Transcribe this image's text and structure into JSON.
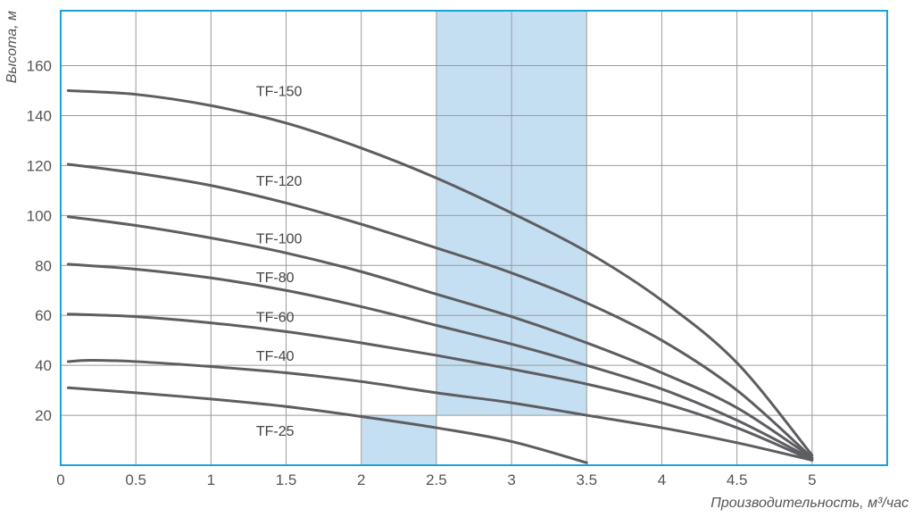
{
  "chart_data": {
    "type": "line",
    "title": "",
    "xlabel": "Производительность, м³/час",
    "ylabel": "Высота, м",
    "xlim": [
      0,
      5.5
    ],
    "ylim": [
      0,
      182
    ],
    "x_ticks": [
      0,
      0.5,
      1,
      1.5,
      2,
      2.5,
      3,
      3.5,
      4,
      4.5,
      5
    ],
    "x_tick_labels": [
      "0",
      "0.5",
      "1",
      "1.5",
      "2",
      "2.5",
      "3",
      "3.5",
      "4",
      "4.5",
      "5"
    ],
    "y_ticks": [
      20,
      40,
      60,
      80,
      100,
      120,
      140,
      160
    ],
    "y_tick_labels": [
      "20",
      "40",
      "60",
      "80",
      "100",
      "120",
      "140",
      "160"
    ],
    "grid": true,
    "shaded_regions": [
      {
        "x": [
          2.5,
          3.5
        ],
        "y": [
          20,
          182
        ]
      },
      {
        "x": [
          2,
          2.5
        ],
        "y": [
          0,
          20
        ]
      }
    ],
    "colors": {
      "frame": "#1aa3d9",
      "grid": "#9a9a9a",
      "curve": "#5d5d62",
      "shade": "#c5dff2"
    },
    "series": [
      {
        "name": "TF-150",
        "label_at": [
          1.3,
          150
        ],
        "x": [
          0.05,
          0.5,
          1,
          1.5,
          2,
          2.5,
          3,
          3.5,
          4,
          4.5,
          5
        ],
        "y": [
          150,
          148.5,
          144,
          137,
          127,
          115,
          101,
          85.5,
          66,
          41,
          4
        ]
      },
      {
        "name": "TF-120",
        "label_at": [
          1.3,
          114
        ],
        "x": [
          0.05,
          0.5,
          1,
          1.5,
          2,
          2.5,
          3,
          3.5,
          4,
          4.5,
          5
        ],
        "y": [
          120.5,
          117,
          112,
          105,
          96.5,
          87,
          77,
          65,
          50,
          30,
          3
        ]
      },
      {
        "name": "TF-100",
        "label_at": [
          1.3,
          91
        ],
        "x": [
          0.05,
          0.5,
          1,
          1.5,
          2,
          2.5,
          3,
          3.5,
          4,
          4.5,
          5
        ],
        "y": [
          99.5,
          96,
          91,
          85,
          77.5,
          68.5,
          59.5,
          49,
          37,
          23,
          3
        ]
      },
      {
        "name": "TF-80",
        "label_at": [
          1.3,
          75.5
        ],
        "x": [
          0.05,
          0.5,
          1,
          1.5,
          2,
          2.5,
          3,
          3.5,
          4,
          4.5,
          5
        ],
        "y": [
          80.5,
          78.5,
          75,
          70,
          63.5,
          56,
          48.5,
          40,
          30.5,
          18,
          2.5
        ]
      },
      {
        "name": "TF-60",
        "label_at": [
          1.3,
          59.5
        ],
        "x": [
          0.05,
          0.5,
          1,
          1.5,
          2,
          2.5,
          3,
          3.5,
          4,
          4.5,
          5
        ],
        "y": [
          60.5,
          59.5,
          57,
          53.5,
          49,
          44,
          38.5,
          32.5,
          25,
          15,
          2
        ]
      },
      {
        "name": "TF-40",
        "label_at": [
          1.3,
          44
        ],
        "x": [
          0.05,
          0.2,
          0.5,
          1,
          1.5,
          2,
          2.5,
          3,
          3.5,
          4,
          4.5,
          5
        ],
        "y": [
          41.5,
          42,
          41.5,
          39.5,
          37,
          33.5,
          29,
          25,
          20,
          15,
          9,
          2
        ]
      },
      {
        "name": "TF-25",
        "label_at": [
          1.3,
          14
        ],
        "x": [
          0.05,
          0.5,
          1,
          1.5,
          2,
          2.5,
          3,
          3.5
        ],
        "y": [
          31,
          29,
          26.5,
          23.5,
          19.5,
          15,
          9.5,
          1
        ]
      }
    ]
  }
}
